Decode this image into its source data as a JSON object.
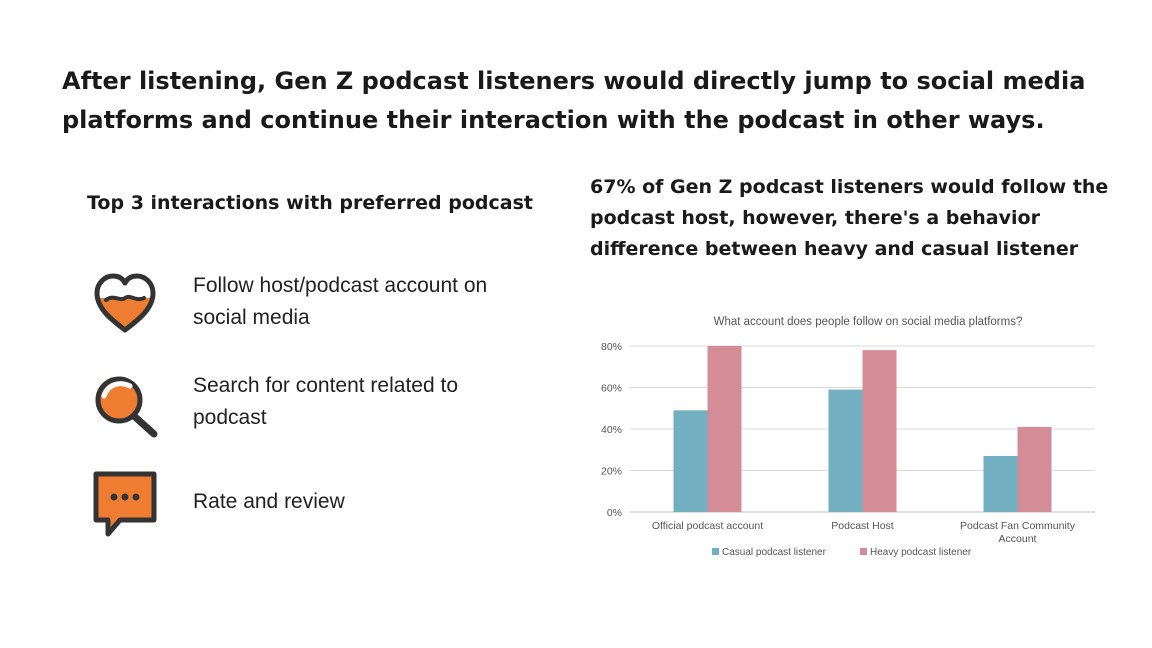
{
  "headline": "After listening, Gen Z podcast listeners would directly jump to social media platforms and continue their interaction with the podcast in other ways.",
  "left_heading": "Top 3 interactions with preferred podcast",
  "right_heading": "67% of Gen Z podcast listeners would follow the podcast host, however, there's a behavior difference between heavy and casual listener",
  "interactions": [
    {
      "label": "Follow host/podcast account on social media",
      "icon": "heart-icon"
    },
    {
      "label": "Search for content related to podcast",
      "icon": "magnifier-icon"
    },
    {
      "label": "Rate and review",
      "icon": "chat-bubble-icon"
    }
  ],
  "colors": {
    "accent": "#EE7D31",
    "dark": "#333333",
    "casual": "#72AFC0",
    "heavy": "#D48C96"
  },
  "chart_data": {
    "type": "bar",
    "title": "What account does people follow on social media platforms?",
    "categories": [
      "Official podcast account",
      "Podcast Host",
      "Podcast Fan Community Account"
    ],
    "series": [
      {
        "name": "Casual podcast listener",
        "values": [
          49,
          59,
          27
        ]
      },
      {
        "name": "Heavy podcast listener",
        "values": [
          80,
          78,
          41
        ]
      }
    ],
    "yticks": [
      "0%",
      "20%",
      "40%",
      "60%",
      "80%"
    ],
    "ylim": [
      0,
      80
    ],
    "grid": true,
    "legend": "bottom",
    "xlabel": "",
    "ylabel": ""
  }
}
